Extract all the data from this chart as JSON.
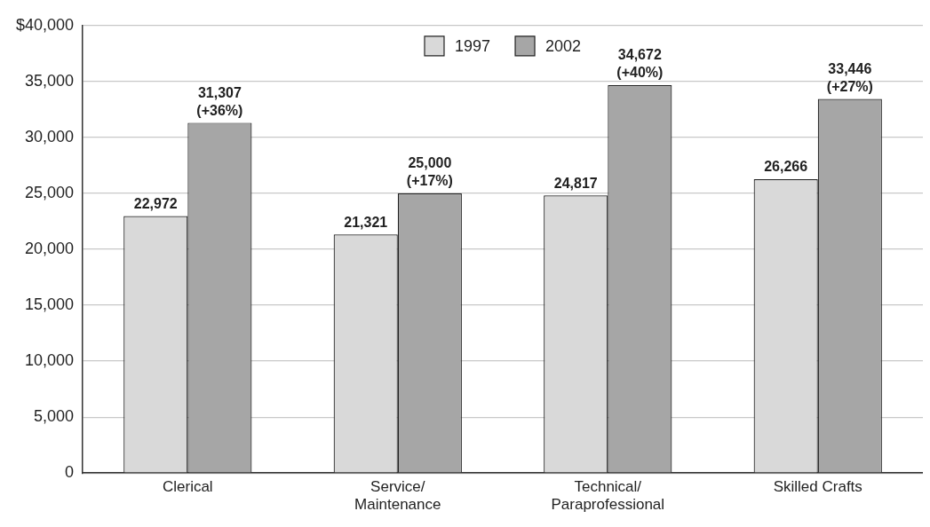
{
  "chart_data": {
    "type": "bar",
    "categories": [
      "Clerical",
      "Service/\nMaintenance",
      "Technical/\nParaprofessional",
      "Skilled Crafts"
    ],
    "series": [
      {
        "name": "1997",
        "color": "#d9d9d9",
        "values": [
          22972,
          21321,
          24817,
          26266
        ],
        "value_labels": [
          "22,972",
          "21,321",
          "24,817",
          "26,266"
        ]
      },
      {
        "name": "2002",
        "color": "#a6a6a6",
        "values": [
          31307,
          25000,
          34672,
          33446
        ],
        "value_labels": [
          "31,307\n(+36%)",
          "25,000\n(+17%)",
          "34,672\n(+40%)",
          "33,446\n(+27%)"
        ]
      }
    ],
    "ylim": [
      0,
      40000
    ],
    "yticks": [
      0,
      {
        "value": 5000,
        "label": "5,000"
      },
      {
        "value": 10000,
        "label": "10,000"
      },
      {
        "value": 15000,
        "label": "15,000"
      },
      {
        "value": 20000,
        "label": "20,000"
      },
      {
        "value": 25000,
        "label": "25,000"
      },
      {
        "value": 30000,
        "label": "30,000"
      },
      {
        "value": 35000,
        "label": "35,000"
      },
      {
        "value": 40000,
        "label": "$40,000"
      }
    ],
    "grid": "y",
    "legend": "top"
  }
}
